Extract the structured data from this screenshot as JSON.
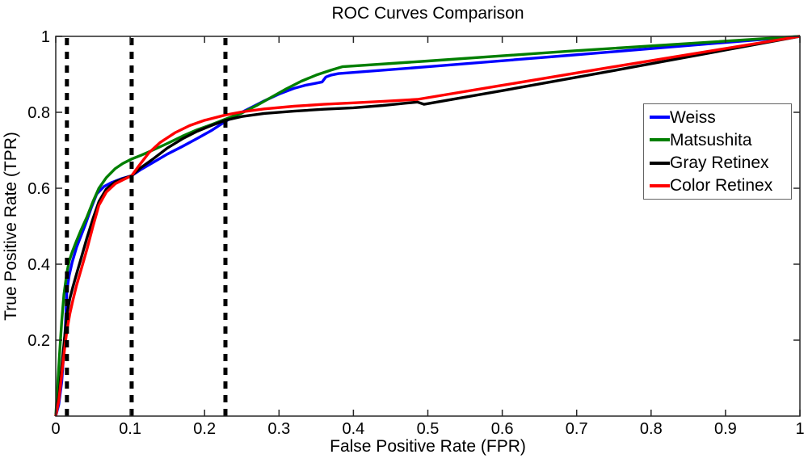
{
  "figure": {
    "background": "#ffffff",
    "title": "ROC Curves Comparison"
  },
  "axes": {
    "xlabel": "False Positive Rate (FPR)",
    "ylabel": "True Positive Rate (TPR)",
    "x_tick_labels": [
      "0",
      "0.1",
      "0.2",
      "0.3",
      "0.4",
      "0.5",
      "0.6",
      "0.7",
      "0.8",
      "0.9",
      "1"
    ],
    "x_tick_values": [
      0,
      0.1,
      0.2,
      0.3,
      0.4,
      0.5,
      0.6,
      0.7,
      0.8,
      0.9,
      1
    ],
    "y_tick_labels": [
      "0.2",
      "0.4",
      "0.6",
      "0.8",
      "1"
    ],
    "y_tick_values": [
      0.2,
      0.4,
      0.6,
      0.8,
      1
    ],
    "axis_color": "#262626"
  },
  "legend": {
    "position": "right-middle",
    "items": [
      {
        "label": "Weiss",
        "color": "#0000ff"
      },
      {
        "label": "Matsushita",
        "color": "#007f00"
      },
      {
        "label": "Gray Retinex",
        "color": "#000000"
      },
      {
        "label": "Color Retinex",
        "color": "#ff0000"
      }
    ]
  },
  "chart_data": {
    "type": "line",
    "title": "ROC Curves Comparison",
    "xlabel": "False Positive Rate (FPR)",
    "ylabel": "True Positive Rate (TPR)",
    "xlim": [
      0,
      1
    ],
    "ylim": [
      0,
      1
    ],
    "grid": false,
    "legend_position": "right-middle",
    "series": [
      {
        "name": "Weiss",
        "color": "#0000ff",
        "points": [
          [
            0,
            0
          ],
          [
            0.004,
            0.03
          ],
          [
            0.008,
            0.09
          ],
          [
            0.011,
            0.17
          ],
          [
            0.013,
            0.24
          ],
          [
            0.015,
            0.33
          ],
          [
            0.018,
            0.37
          ],
          [
            0.022,
            0.405
          ],
          [
            0.028,
            0.445
          ],
          [
            0.034,
            0.475
          ],
          [
            0.04,
            0.505
          ],
          [
            0.048,
            0.55
          ],
          [
            0.055,
            0.585
          ],
          [
            0.065,
            0.605
          ],
          [
            0.075,
            0.615
          ],
          [
            0.088,
            0.625
          ],
          [
            0.102,
            0.633
          ],
          [
            0.115,
            0.65
          ],
          [
            0.13,
            0.667
          ],
          [
            0.15,
            0.69
          ],
          [
            0.17,
            0.71
          ],
          [
            0.19,
            0.731
          ],
          [
            0.21,
            0.753
          ],
          [
            0.228,
            0.776
          ],
          [
            0.245,
            0.795
          ],
          [
            0.26,
            0.81
          ],
          [
            0.28,
            0.83
          ],
          [
            0.3,
            0.848
          ],
          [
            0.32,
            0.863
          ],
          [
            0.335,
            0.871
          ],
          [
            0.348,
            0.876
          ],
          [
            0.358,
            0.88
          ],
          [
            0.363,
            0.893
          ],
          [
            0.37,
            0.898
          ],
          [
            0.38,
            0.902
          ],
          [
            0.5,
            0.92
          ],
          [
            0.69,
            0.95
          ],
          [
            1,
            1
          ]
        ]
      },
      {
        "name": "Matsushita",
        "color": "#007f00",
        "points": [
          [
            0,
            0
          ],
          [
            0.002,
            0.06
          ],
          [
            0.005,
            0.16
          ],
          [
            0.008,
            0.25
          ],
          [
            0.011,
            0.32
          ],
          [
            0.015,
            0.378
          ],
          [
            0.018,
            0.408
          ],
          [
            0.022,
            0.432
          ],
          [
            0.028,
            0.462
          ],
          [
            0.034,
            0.49
          ],
          [
            0.042,
            0.525
          ],
          [
            0.05,
            0.565
          ],
          [
            0.058,
            0.6
          ],
          [
            0.068,
            0.628
          ],
          [
            0.08,
            0.652
          ],
          [
            0.09,
            0.665
          ],
          [
            0.102,
            0.677
          ],
          [
            0.115,
            0.687
          ],
          [
            0.13,
            0.7
          ],
          [
            0.15,
            0.718
          ],
          [
            0.17,
            0.737
          ],
          [
            0.19,
            0.754
          ],
          [
            0.21,
            0.768
          ],
          [
            0.228,
            0.782
          ],
          [
            0.25,
            0.798
          ],
          [
            0.27,
            0.818
          ],
          [
            0.29,
            0.84
          ],
          [
            0.31,
            0.862
          ],
          [
            0.33,
            0.882
          ],
          [
            0.35,
            0.898
          ],
          [
            0.37,
            0.911
          ],
          [
            0.385,
            0.92
          ],
          [
            0.5,
            0.935
          ],
          [
            0.69,
            0.961
          ],
          [
            1,
            1
          ]
        ]
      },
      {
        "name": "Gray Retinex",
        "color": "#000000",
        "points": [
          [
            0,
            0
          ],
          [
            0.004,
            0.05
          ],
          [
            0.008,
            0.13
          ],
          [
            0.012,
            0.21
          ],
          [
            0.015,
            0.268
          ],
          [
            0.019,
            0.31
          ],
          [
            0.023,
            0.34
          ],
          [
            0.028,
            0.375
          ],
          [
            0.034,
            0.415
          ],
          [
            0.042,
            0.47
          ],
          [
            0.05,
            0.52
          ],
          [
            0.058,
            0.565
          ],
          [
            0.068,
            0.598
          ],
          [
            0.08,
            0.617
          ],
          [
            0.09,
            0.625
          ],
          [
            0.102,
            0.633
          ],
          [
            0.115,
            0.655
          ],
          [
            0.13,
            0.676
          ],
          [
            0.15,
            0.706
          ],
          [
            0.17,
            0.73
          ],
          [
            0.19,
            0.75
          ],
          [
            0.21,
            0.766
          ],
          [
            0.228,
            0.779
          ],
          [
            0.25,
            0.789
          ],
          [
            0.28,
            0.797
          ],
          [
            0.32,
            0.803
          ],
          [
            0.36,
            0.808
          ],
          [
            0.4,
            0.812
          ],
          [
            0.44,
            0.818
          ],
          [
            0.47,
            0.824
          ],
          [
            0.486,
            0.827
          ],
          [
            0.495,
            0.821
          ],
          [
            0.6,
            0.857
          ],
          [
            0.75,
            0.91
          ],
          [
            1,
            1
          ]
        ]
      },
      {
        "name": "Color Retinex",
        "color": "#ff0000",
        "points": [
          [
            0,
            0
          ],
          [
            0.004,
            0.04
          ],
          [
            0.008,
            0.11
          ],
          [
            0.012,
            0.18
          ],
          [
            0.015,
            0.225
          ],
          [
            0.019,
            0.27
          ],
          [
            0.023,
            0.305
          ],
          [
            0.028,
            0.345
          ],
          [
            0.034,
            0.385
          ],
          [
            0.042,
            0.44
          ],
          [
            0.05,
            0.5
          ],
          [
            0.058,
            0.555
          ],
          [
            0.068,
            0.59
          ],
          [
            0.08,
            0.612
          ],
          [
            0.09,
            0.622
          ],
          [
            0.102,
            0.633
          ],
          [
            0.112,
            0.66
          ],
          [
            0.125,
            0.693
          ],
          [
            0.14,
            0.72
          ],
          [
            0.16,
            0.746
          ],
          [
            0.18,
            0.765
          ],
          [
            0.2,
            0.779
          ],
          [
            0.228,
            0.793
          ],
          [
            0.25,
            0.801
          ],
          [
            0.28,
            0.809
          ],
          [
            0.32,
            0.816
          ],
          [
            0.36,
            0.821
          ],
          [
            0.4,
            0.825
          ],
          [
            0.44,
            0.829
          ],
          [
            0.486,
            0.834
          ],
          [
            0.6,
            0.871
          ],
          [
            0.75,
            0.92
          ],
          [
            0.9,
            0.968
          ],
          [
            1,
            1
          ]
        ]
      }
    ],
    "vertical_dashed_lines": {
      "color": "#000000",
      "x_values": [
        0.015,
        0.102,
        0.228
      ]
    }
  }
}
